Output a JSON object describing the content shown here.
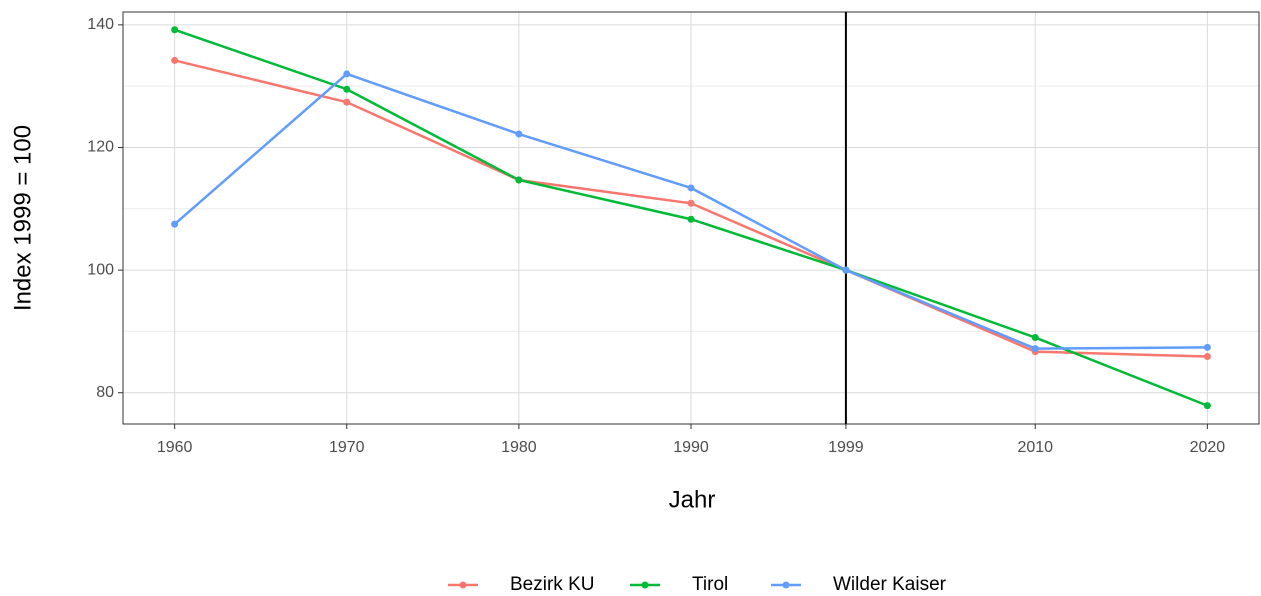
{
  "chart_data": {
    "type": "line",
    "x_label": "Jahr",
    "y_label": "Index 1999 = 100",
    "x": [
      1960,
      1970,
      1980,
      1990,
      1999,
      2010,
      2020
    ],
    "series": [
      {
        "name": "Bezirk KU",
        "color": "#f8766d",
        "values": [
          134.2,
          127.4,
          114.7,
          110.9,
          100,
          86.7,
          85.9
        ]
      },
      {
        "name": "Tirol",
        "color": "#00ba38",
        "values": [
          139.2,
          129.5,
          114.7,
          108.3,
          100,
          89.0,
          77.9
        ]
      },
      {
        "name": "Wilder Kaiser",
        "color": "#619cff",
        "values": [
          107.5,
          132.0,
          122.2,
          113.4,
          100,
          87.2,
          87.4
        ]
      }
    ],
    "xlim": [
      1957,
      2023
    ],
    "xticks": [
      1960,
      1970,
      1980,
      1990,
      1999,
      2010,
      2020
    ],
    "ylim": [
      74.9,
      142.1
    ],
    "yticks": [
      80,
      100,
      120,
      140
    ],
    "vline": 1999,
    "grid": true,
    "legend": "bottom"
  }
}
